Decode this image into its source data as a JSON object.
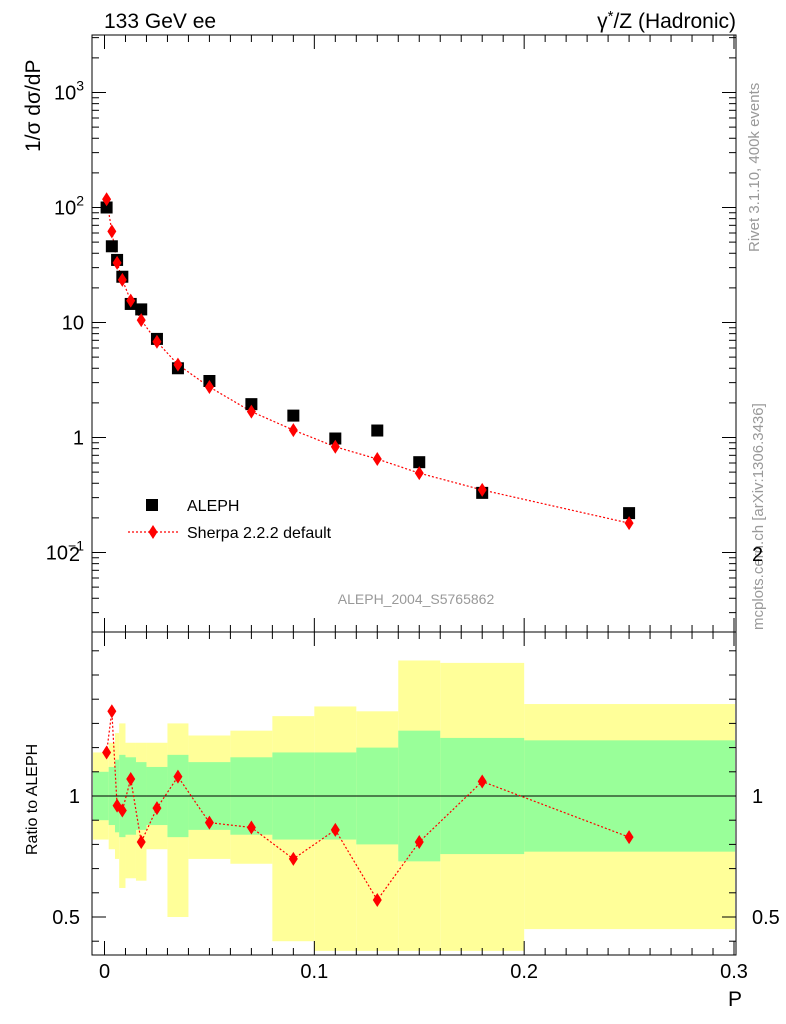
{
  "header": {
    "left": "133 GeV ee",
    "right_prefix": "γ",
    "right_sup": "*",
    "right_suffix": "/Z (Hadronic)"
  },
  "side_text": {
    "rivet": "Rivet 3.1.10,  400k events",
    "mcplots": "mcplots.cern.ch [arXiv:1306.3436]"
  },
  "analysis_id": "ALEPH_2004_S5765862",
  "colors": {
    "data": "#000000",
    "mc": "#ff0000",
    "band_inner": "#99ff99",
    "band_outer": "#ffff99",
    "axis": "#000000",
    "watermark": "#999999"
  },
  "chart_data": [
    {
      "type": "scatter",
      "panel": "main",
      "ylabel": "1/σ  dσ/dP",
      "yscale": "log",
      "ylim": [
        0.02,
        3000
      ],
      "xlim": [
        -0.006,
        0.3
      ],
      "y_tick_labels": [
        {
          "value": 0.1,
          "base": "10",
          "exp": "−1"
        },
        {
          "value": 1,
          "base": "1",
          "exp": ""
        },
        {
          "value": 10,
          "base": "10",
          "exp": ""
        },
        {
          "value": 100,
          "base": "10",
          "exp": "2"
        },
        {
          "value": 1000,
          "base": "10",
          "exp": "3"
        }
      ],
      "legend": {
        "position": "bottom-left"
      },
      "series": [
        {
          "name": "ALEPH",
          "marker": "square",
          "x": [
            0.001,
            0.0035,
            0.006,
            0.0085,
            0.0125,
            0.0175,
            0.025,
            0.035,
            0.05,
            0.07,
            0.09,
            0.11,
            0.13,
            0.15,
            0.18,
            0.25
          ],
          "y": [
            100,
            46,
            35,
            25,
            14.5,
            13,
            7.2,
            4.0,
            3.1,
            1.95,
            1.55,
            0.98,
            1.15,
            0.61,
            0.33,
            0.22
          ]
        },
        {
          "name": "Sherpa 2.2.2 default",
          "marker": "diamond",
          "line": "dotted",
          "x": [
            0.001,
            0.0035,
            0.006,
            0.0085,
            0.0125,
            0.0175,
            0.025,
            0.035,
            0.05,
            0.07,
            0.09,
            0.11,
            0.13,
            0.15,
            0.18,
            0.25
          ],
          "y": [
            118,
            62,
            33,
            23.5,
            15.5,
            10.5,
            6.8,
            4.3,
            2.75,
            1.68,
            1.16,
            0.83,
            0.65,
            0.49,
            0.35,
            0.18
          ]
        }
      ]
    },
    {
      "type": "scatter",
      "panel": "ratio",
      "ylabel": "Ratio to ALEPH",
      "xlabel": "P",
      "ylim": [
        0.35,
        2.3
      ],
      "xlim": [
        -0.006,
        0.3
      ],
      "x_ticks": [
        0,
        0.1,
        0.2,
        0.3
      ],
      "x_tick_labels": [
        "0",
        "0.1",
        "0.2",
        "0.3"
      ],
      "y_ticks": [
        0.5,
        1,
        2
      ],
      "y_tick_labels": [
        "0.5",
        "1",
        "2"
      ],
      "reference_line": 1,
      "bins": [
        {
          "lo": 0.0,
          "hi": 0.002,
          "inner": [
            0.9,
            1.1
          ],
          "outer": [
            0.82,
            1.18
          ]
        },
        {
          "lo": 0.002,
          "hi": 0.005,
          "inner": [
            0.88,
            1.12
          ],
          "outer": [
            0.78,
            1.22
          ]
        },
        {
          "lo": 0.005,
          "hi": 0.007,
          "inner": [
            0.85,
            1.15
          ],
          "outer": [
            0.74,
            1.26
          ]
        },
        {
          "lo": 0.007,
          "hi": 0.01,
          "inner": [
            0.83,
            1.17
          ],
          "outer": [
            0.62,
            1.3
          ]
        },
        {
          "lo": 0.01,
          "hi": 0.015,
          "inner": [
            0.84,
            1.16
          ],
          "outer": [
            0.66,
            1.22
          ]
        },
        {
          "lo": 0.015,
          "hi": 0.02,
          "inner": [
            0.86,
            1.14
          ],
          "outer": [
            0.65,
            1.22
          ]
        },
        {
          "lo": 0.02,
          "hi": 0.03,
          "inner": [
            0.88,
            1.12
          ],
          "outer": [
            0.78,
            1.22
          ]
        },
        {
          "lo": 0.03,
          "hi": 0.04,
          "inner": [
            0.83,
            1.17
          ],
          "outer": [
            0.5,
            1.3
          ]
        },
        {
          "lo": 0.04,
          "hi": 0.06,
          "inner": [
            0.86,
            1.14
          ],
          "outer": [
            0.74,
            1.25
          ]
        },
        {
          "lo": 0.06,
          "hi": 0.08,
          "inner": [
            0.84,
            1.16
          ],
          "outer": [
            0.72,
            1.27
          ]
        },
        {
          "lo": 0.08,
          "hi": 0.1,
          "inner": [
            0.82,
            1.18
          ],
          "outer": [
            0.4,
            1.33
          ]
        },
        {
          "lo": 0.1,
          "hi": 0.12,
          "inner": [
            0.82,
            1.18
          ],
          "outer": [
            0.36,
            1.37
          ]
        },
        {
          "lo": 0.12,
          "hi": 0.14,
          "inner": [
            0.8,
            1.2
          ],
          "outer": [
            0.36,
            1.35
          ]
        },
        {
          "lo": 0.14,
          "hi": 0.16,
          "inner": [
            0.73,
            1.27
          ],
          "outer": [
            0.36,
            1.56
          ]
        },
        {
          "lo": 0.16,
          "hi": 0.2,
          "inner": [
            0.76,
            1.24
          ],
          "outer": [
            0.36,
            1.55
          ]
        },
        {
          "lo": 0.2,
          "hi": 0.3,
          "inner": [
            0.77,
            1.23
          ],
          "outer": [
            0.45,
            1.38
          ]
        }
      ],
      "series": [
        {
          "name": "Sherpa 2.2.2 default",
          "marker": "diamond",
          "line": "dotted",
          "x": [
            0.001,
            0.0035,
            0.006,
            0.0085,
            0.0125,
            0.0175,
            0.025,
            0.035,
            0.05,
            0.07,
            0.09,
            0.11,
            0.13,
            0.15,
            0.18,
            0.25
          ],
          "y": [
            1.18,
            1.35,
            0.96,
            0.94,
            1.07,
            0.81,
            0.95,
            1.08,
            0.89,
            0.87,
            0.74,
            0.86,
            0.57,
            0.81,
            1.06,
            0.83
          ]
        }
      ]
    }
  ]
}
